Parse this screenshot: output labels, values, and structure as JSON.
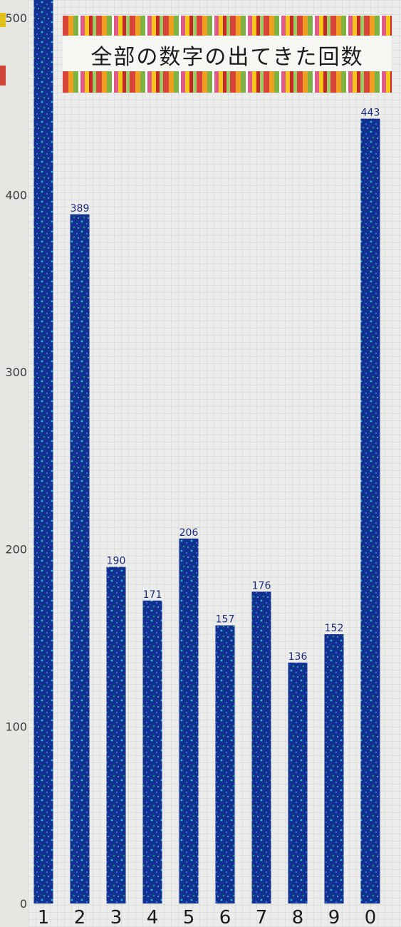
{
  "chart_data": {
    "type": "bar",
    "title": "全部の数字の出てきた回数",
    "categories": [
      "1",
      "2",
      "3",
      "4",
      "5",
      "6",
      "7",
      "8",
      "9",
      "0"
    ],
    "values": [
      510,
      389,
      190,
      171,
      206,
      157,
      176,
      136,
      152,
      443
    ],
    "value_labels": [
      "",
      "389",
      "190",
      "171",
      "206",
      "157",
      "176",
      "136",
      "152",
      "443"
    ],
    "y_ticks": [
      0,
      100,
      200,
      300,
      400,
      500
    ],
    "ylim": [
      0,
      510
    ],
    "xlabel": "",
    "ylabel": "",
    "grid": true,
    "legend": "none",
    "colors": {
      "bar": "#0f2f9a",
      "bar_sparkle": "#2fd0d8",
      "text": "#1a1a1a",
      "label": "#1b2a7a"
    }
  }
}
